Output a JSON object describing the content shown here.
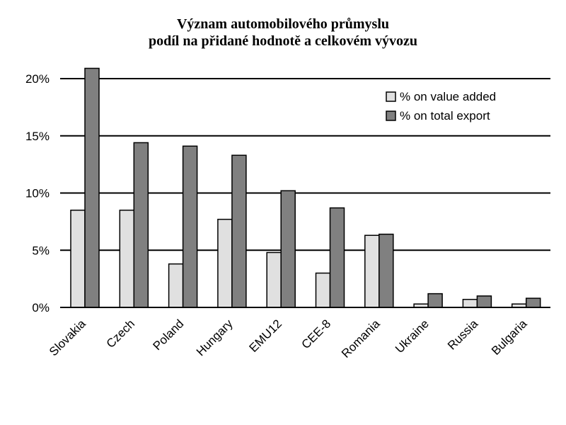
{
  "chart_data": {
    "type": "bar",
    "title": "Význam automobilového průmyslu",
    "subtitle": "podíl na přidané hodnotě a celkovém vývozu",
    "xlabel": "",
    "ylabel": "",
    "ylim": [
      0,
      20
    ],
    "y_ticks": [
      "0%",
      "5%",
      "10%",
      "15%",
      "20%"
    ],
    "grid": true,
    "legend_position": "top-right",
    "categories": [
      "Slovakia",
      "Czech",
      "Poland",
      "Hungary",
      "EMU12",
      "CEE-8",
      "Romania",
      "Ukraine",
      "Russia",
      "Bulgaria"
    ],
    "series": [
      {
        "name": "% on value added",
        "color": "#e0e0e0",
        "values": [
          8.5,
          8.5,
          3.8,
          7.7,
          4.8,
          3.0,
          6.3,
          0.3,
          0.7,
          0.3
        ]
      },
      {
        "name": "% on total export",
        "color": "#808080",
        "values": [
          20.9,
          14.4,
          14.1,
          13.3,
          10.2,
          8.7,
          6.4,
          1.2,
          1.0,
          0.8
        ]
      }
    ]
  }
}
